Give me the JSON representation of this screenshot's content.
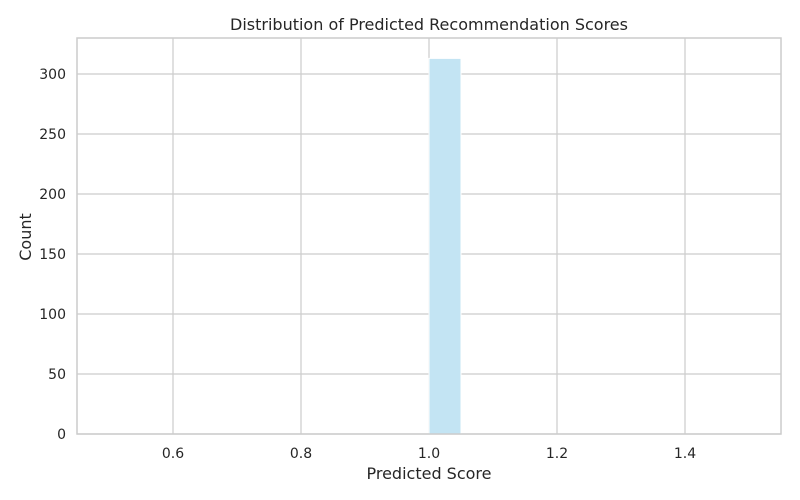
{
  "chart_data": {
    "type": "bar",
    "title": "Distribution of Predicted Recommendation Scores",
    "xlabel": "Predicted Score",
    "ylabel": "Count",
    "xlim": [
      0.45,
      1.55
    ],
    "ylim": [
      0,
      330
    ],
    "xticks": [
      0.6,
      0.8,
      1.0,
      1.2,
      1.4
    ],
    "yticks": [
      0,
      50,
      100,
      150,
      200,
      250,
      300
    ],
    "grid": true,
    "bins": [
      {
        "x0": 1.0,
        "x1": 1.05,
        "count": 313
      }
    ],
    "bar_color": "#c3e4f3",
    "bar_edge_color": "#ffffff"
  }
}
